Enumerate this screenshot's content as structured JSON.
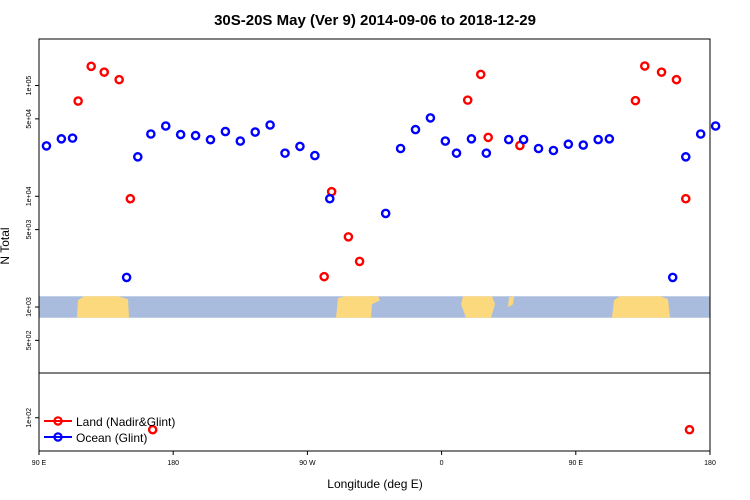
{
  "chart_data": {
    "type": "scatter",
    "title": "30S-20S May (Ver 9)   2014-09-06 to 2018-12-29",
    "xlabel": "Longitude (deg E)",
    "ylabel": "N Total",
    "xlim": [
      90,
      450
    ],
    "ylim_log10": [
      1.7,
      5.42
    ],
    "log_y": true,
    "x_ticks": [
      {
        "v": 90,
        "label": "90 E"
      },
      {
        "v": 162,
        "label": "180"
      },
      {
        "v": 234,
        "label": "90 W"
      },
      {
        "v": 306,
        "label": "0"
      },
      {
        "v": 378,
        "label": "90 E"
      },
      {
        "v": 450,
        "label": "180"
      }
    ],
    "y_ticks": [
      {
        "v": 100,
        "label": "1e+02"
      },
      {
        "v": 500,
        "label": "5e+02"
      },
      {
        "v": 1000,
        "label": "1e+03"
      },
      {
        "v": 5000,
        "label": "5e+03"
      },
      {
        "v": 10000,
        "label": "1e+04"
      },
      {
        "v": 50000,
        "label": "5e+04"
      },
      {
        "v": 100000,
        "label": "1e+05"
      }
    ],
    "grid": false,
    "legend_position": "bottom-left",
    "series": [
      {
        "name": "Land (Nadir&Glint)",
        "color": "#ff0000",
        "points": [
          [
            111,
            72400
          ],
          [
            118,
            149000
          ],
          [
            125,
            132000
          ],
          [
            133,
            113000
          ],
          [
            139,
            9500
          ],
          [
            151,
            78
          ],
          [
            243,
            1880
          ],
          [
            247,
            11000
          ],
          [
            256,
            4300
          ],
          [
            262,
            2580
          ],
          [
            320,
            73800
          ],
          [
            327,
            126000
          ],
          [
            331,
            34000
          ],
          [
            348,
            28700
          ],
          [
            410,
            73000
          ],
          [
            415,
            150000
          ],
          [
            424,
            132000
          ],
          [
            432,
            113000
          ],
          [
            437,
            9500
          ],
          [
            439,
            78
          ]
        ]
      },
      {
        "name": "Ocean (Glint)",
        "color": "#0000ff",
        "points": [
          [
            94,
            28500
          ],
          [
            102,
            33000
          ],
          [
            108,
            33500
          ],
          [
            137,
            1850
          ],
          [
            143,
            22700
          ],
          [
            150,
            36500
          ],
          [
            158,
            43100
          ],
          [
            166,
            36100
          ],
          [
            174,
            35300
          ],
          [
            182,
            32400
          ],
          [
            190,
            38400
          ],
          [
            198,
            31500
          ],
          [
            206,
            38000
          ],
          [
            214,
            44000
          ],
          [
            222,
            24500
          ],
          [
            230,
            28200
          ],
          [
            238,
            23300
          ],
          [
            246,
            9500
          ],
          [
            276,
            7000
          ],
          [
            284,
            27000
          ],
          [
            292,
            40000
          ],
          [
            300,
            51000
          ],
          [
            308,
            31500
          ],
          [
            314,
            24500
          ],
          [
            322,
            33000
          ],
          [
            330,
            24500
          ],
          [
            342,
            32500
          ],
          [
            350,
            32500
          ],
          [
            358,
            27000
          ],
          [
            366,
            25900
          ],
          [
            374,
            29500
          ],
          [
            382,
            29000
          ],
          [
            390,
            32500
          ],
          [
            396,
            33000
          ],
          [
            430,
            1850
          ],
          [
            437,
            22700
          ],
          [
            445,
            36500
          ],
          [
            453,
            43100
          ]
        ]
      }
    ],
    "land_mask_band": {
      "y_range_values": [
        800,
        1250
      ],
      "ocean_color": "#a9bcdd",
      "land_color": "#fdd97d"
    }
  }
}
